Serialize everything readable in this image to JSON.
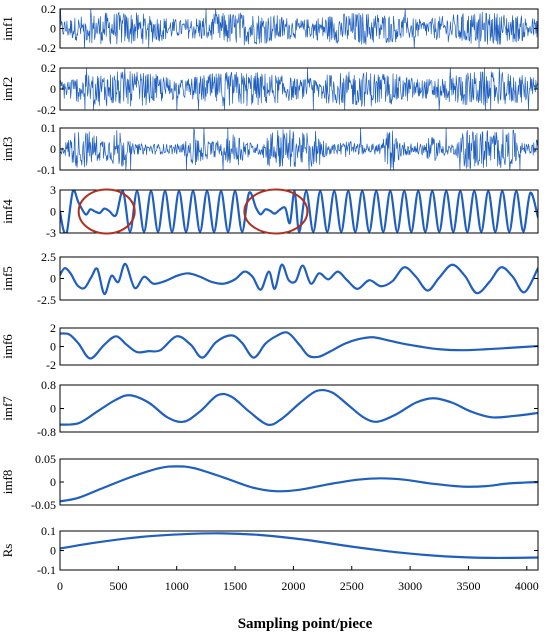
{
  "chart_data": {
    "type": "line",
    "xlabel": "Sampling point/piece",
    "xlim": [
      0,
      4096
    ],
    "x_ticks": [
      "0",
      "500",
      "1000",
      "1500",
      "2000",
      "2500",
      "3000",
      "3500",
      "4000"
    ],
    "line_color": "#1f5fbf",
    "annotation_color": "#b03020",
    "annotations": [
      {
        "panel": "imf4",
        "shape": "ellipse",
        "x_range": [
          160,
          640
        ]
      },
      {
        "panel": "imf4",
        "shape": "ellipse",
        "x_range": [
          1580,
          2120
        ]
      }
    ],
    "panels": [
      {
        "name": "imf1",
        "ylabel": "imf1",
        "ylim": [
          -0.2,
          0.2
        ],
        "yticks": [
          "0.2",
          "0",
          "-0.2"
        ],
        "kind": "noise",
        "amp": 0.2
      },
      {
        "name": "imf2",
        "ylabel": "imf2",
        "ylim": [
          -0.2,
          0.2
        ],
        "yticks": [
          "0.2",
          "0",
          "-0.2"
        ],
        "kind": "noise",
        "amp": 0.2
      },
      {
        "name": "imf3",
        "ylabel": "imf3",
        "ylim": [
          -0.1,
          0.1
        ],
        "yticks": [
          "0.1",
          "0",
          "-0.1"
        ],
        "kind": "bursty",
        "amp": 0.1
      },
      {
        "name": "imf4",
        "ylabel": "imf4",
        "ylim": [
          -3,
          3
        ],
        "yticks": [
          "3",
          "0",
          "-3"
        ],
        "kind": "oscillation",
        "points": [
          [
            0,
            0
          ],
          [
            30,
            -2.6
          ],
          [
            60,
            -2.8
          ],
          [
            110,
            2.8
          ],
          [
            160,
            1.2
          ],
          [
            220,
            -0.4
          ],
          [
            260,
            0.3
          ],
          [
            300,
            0
          ],
          [
            340,
            -0.2
          ],
          [
            380,
            0.4
          ],
          [
            420,
            0.1
          ],
          [
            480,
            -0.5
          ],
          [
            540,
            2.8
          ],
          [
            600,
            -2.8
          ],
          [
            660,
            2.8
          ],
          [
            720,
            -2.8
          ],
          [
            780,
            2.8
          ],
          [
            840,
            -2.8
          ],
          [
            900,
            2.8
          ],
          [
            960,
            -2.8
          ],
          [
            1020,
            2.8
          ],
          [
            1080,
            -2.8
          ],
          [
            1140,
            2.8
          ],
          [
            1200,
            -2.8
          ],
          [
            1260,
            2.8
          ],
          [
            1320,
            -2.8
          ],
          [
            1380,
            2.8
          ],
          [
            1440,
            -2.8
          ],
          [
            1500,
            2.8
          ],
          [
            1560,
            -2.8
          ],
          [
            1620,
            2.6
          ],
          [
            1680,
            0.5
          ],
          [
            1720,
            -0.4
          ],
          [
            1760,
            0.3
          ],
          [
            1800,
            0.1
          ],
          [
            1840,
            -0.3
          ],
          [
            1880,
            0.2
          ],
          [
            1930,
            0.5
          ],
          [
            1970,
            -1.6
          ],
          [
            2010,
            2.8
          ],
          [
            2050,
            -2.8
          ],
          [
            2110,
            2.8
          ],
          [
            2170,
            -2.8
          ],
          [
            2230,
            2.8
          ],
          [
            2290,
            -2.8
          ],
          [
            2350,
            2.8
          ],
          [
            2410,
            -2.8
          ],
          [
            2470,
            2.8
          ],
          [
            2530,
            -2.8
          ],
          [
            2590,
            2.8
          ],
          [
            2650,
            -2.8
          ],
          [
            2710,
            2.8
          ],
          [
            2770,
            -2.8
          ],
          [
            2830,
            2.8
          ],
          [
            2890,
            -2.8
          ],
          [
            2950,
            2.8
          ],
          [
            3010,
            -2.8
          ],
          [
            3070,
            2.8
          ],
          [
            3130,
            -2.8
          ],
          [
            3190,
            2.8
          ],
          [
            3250,
            -2.8
          ],
          [
            3310,
            2.8
          ],
          [
            3370,
            -2.8
          ],
          [
            3430,
            2.8
          ],
          [
            3490,
            -2.8
          ],
          [
            3550,
            2.8
          ],
          [
            3610,
            -2.8
          ],
          [
            3670,
            2.8
          ],
          [
            3730,
            -2.8
          ],
          [
            3790,
            2.8
          ],
          [
            3850,
            -2.8
          ],
          [
            3910,
            2.8
          ],
          [
            3970,
            -2.8
          ],
          [
            4030,
            2.6
          ],
          [
            4096,
            -0.8
          ]
        ]
      },
      {
        "name": "imf5",
        "ylabel": "imf5",
        "ylim": [
          -2.5,
          2.5
        ],
        "yticks": [
          "2.5",
          "0",
          "-2.5"
        ],
        "kind": "oscillation",
        "points": [
          [
            0,
            0.4
          ],
          [
            40,
            1.2
          ],
          [
            90,
            0.6
          ],
          [
            150,
            -0.8
          ],
          [
            210,
            -1.1
          ],
          [
            270,
            0.2
          ],
          [
            320,
            1.1
          ],
          [
            380,
            -1.8
          ],
          [
            440,
            0.3
          ],
          [
            500,
            -0.4
          ],
          [
            560,
            1.7
          ],
          [
            640,
            -1.1
          ],
          [
            720,
            0.2
          ],
          [
            800,
            -0.6
          ],
          [
            900,
            -0.3
          ],
          [
            1000,
            0.3
          ],
          [
            1100,
            0.6
          ],
          [
            1200,
            0.2
          ],
          [
            1300,
            -0.4
          ],
          [
            1400,
            -0.6
          ],
          [
            1500,
            -0.1
          ],
          [
            1580,
            0.8
          ],
          [
            1650,
            0.2
          ],
          [
            1720,
            -1.3
          ],
          [
            1790,
            0.8
          ],
          [
            1840,
            -1.2
          ],
          [
            1900,
            1.6
          ],
          [
            1960,
            -0.2
          ],
          [
            2020,
            -0.3
          ],
          [
            2080,
            1.5
          ],
          [
            2150,
            -0.6
          ],
          [
            2220,
            0.6
          ],
          [
            2300,
            -0.1
          ],
          [
            2380,
            0.8
          ],
          [
            2460,
            -0.2
          ],
          [
            2550,
            -1.2
          ],
          [
            2650,
            -0.2
          ],
          [
            2750,
            -0.9
          ],
          [
            2850,
            -0.3
          ],
          [
            2950,
            1.3
          ],
          [
            3050,
            0.2
          ],
          [
            3150,
            -1.4
          ],
          [
            3250,
            0.1
          ],
          [
            3360,
            1.6
          ],
          [
            3470,
            0.3
          ],
          [
            3570,
            -1.7
          ],
          [
            3680,
            -0.4
          ],
          [
            3780,
            1.3
          ],
          [
            3880,
            0.2
          ],
          [
            3980,
            -1.6
          ],
          [
            4096,
            1.2
          ]
        ]
      },
      {
        "name": "imf6",
        "ylabel": "imf6",
        "ylim": [
          -2,
          2
        ],
        "yticks": [
          "2",
          "0",
          "-2"
        ],
        "kind": "oscillation",
        "points": [
          [
            0,
            1.4
          ],
          [
            80,
            1.3
          ],
          [
            160,
            0.3
          ],
          [
            260,
            -1.3
          ],
          [
            380,
            0.2
          ],
          [
            480,
            1.1
          ],
          [
            570,
            0.2
          ],
          [
            660,
            -0.6
          ],
          [
            760,
            -0.5
          ],
          [
            860,
            -0.4
          ],
          [
            1000,
            1.1
          ],
          [
            1120,
            0.2
          ],
          [
            1220,
            -1.2
          ],
          [
            1340,
            0.5
          ],
          [
            1470,
            1.2
          ],
          [
            1560,
            0.4
          ],
          [
            1660,
            -1.2
          ],
          [
            1760,
            0.3
          ],
          [
            1850,
            1.1
          ],
          [
            1950,
            1.5
          ],
          [
            2050,
            0.2
          ],
          [
            2130,
            -1.0
          ],
          [
            2220,
            -1.1
          ],
          [
            2320,
            -0.5
          ],
          [
            2440,
            0.3
          ],
          [
            2560,
            0.8
          ],
          [
            2680,
            1.0
          ],
          [
            2800,
            0.7
          ],
          [
            2940,
            0.3
          ],
          [
            3080,
            0.0
          ],
          [
            3250,
            -0.3
          ],
          [
            3450,
            -0.4
          ],
          [
            3650,
            -0.3
          ],
          [
            3850,
            -0.15
          ],
          [
            4096,
            0.05
          ]
        ]
      },
      {
        "name": "imf7",
        "ylabel": "imf7",
        "ylim": [
          -0.8,
          0.8
        ],
        "yticks": [
          "0.8",
          "0",
          "-0.8"
        ],
        "kind": "oscillation",
        "points": [
          [
            0,
            -0.55
          ],
          [
            160,
            -0.5
          ],
          [
            320,
            -0.1
          ],
          [
            480,
            0.3
          ],
          [
            600,
            0.45
          ],
          [
            760,
            0.2
          ],
          [
            920,
            -0.3
          ],
          [
            1060,
            -0.45
          ],
          [
            1200,
            -0.1
          ],
          [
            1350,
            0.45
          ],
          [
            1470,
            0.4
          ],
          [
            1620,
            -0.1
          ],
          [
            1780,
            -0.55
          ],
          [
            1900,
            -0.35
          ],
          [
            2060,
            0.2
          ],
          [
            2200,
            0.6
          ],
          [
            2330,
            0.55
          ],
          [
            2460,
            0.15
          ],
          [
            2600,
            -0.3
          ],
          [
            2720,
            -0.45
          ],
          [
            2880,
            -0.2
          ],
          [
            3050,
            0.2
          ],
          [
            3200,
            0.35
          ],
          [
            3360,
            0.2
          ],
          [
            3520,
            -0.1
          ],
          [
            3700,
            -0.3
          ],
          [
            3900,
            -0.25
          ],
          [
            4096,
            -0.15
          ]
        ]
      },
      {
        "name": "imf8",
        "ylabel": "imf8",
        "ylim": [
          -0.05,
          0.05
        ],
        "yticks": [
          "0.05",
          "0",
          "-0.05"
        ],
        "kind": "oscillation",
        "points": [
          [
            0,
            -0.042
          ],
          [
            150,
            -0.035
          ],
          [
            350,
            -0.015
          ],
          [
            600,
            0.01
          ],
          [
            850,
            0.03
          ],
          [
            1000,
            0.034
          ],
          [
            1150,
            0.03
          ],
          [
            1400,
            0.01
          ],
          [
            1650,
            -0.012
          ],
          [
            1850,
            -0.02
          ],
          [
            2050,
            -0.017
          ],
          [
            2300,
            -0.005
          ],
          [
            2550,
            0.005
          ],
          [
            2750,
            0.008
          ],
          [
            2950,
            0.005
          ],
          [
            3200,
            -0.004
          ],
          [
            3450,
            -0.01
          ],
          [
            3650,
            -0.009
          ],
          [
            3850,
            -0.003
          ],
          [
            4096,
            0.0
          ]
        ]
      },
      {
        "name": "Rs",
        "ylabel": "Rs",
        "ylim": [
          -0.1,
          0.1
        ],
        "yticks": [
          "0.1",
          "0",
          "-0.1"
        ],
        "kind": "oscillation",
        "points": [
          [
            0,
            0.01
          ],
          [
            300,
            0.04
          ],
          [
            700,
            0.07
          ],
          [
            1100,
            0.085
          ],
          [
            1400,
            0.088
          ],
          [
            1700,
            0.08
          ],
          [
            2100,
            0.055
          ],
          [
            2500,
            0.02
          ],
          [
            2900,
            -0.01
          ],
          [
            3300,
            -0.03
          ],
          [
            3700,
            -0.038
          ],
          [
            4096,
            -0.036
          ]
        ]
      }
    ]
  }
}
